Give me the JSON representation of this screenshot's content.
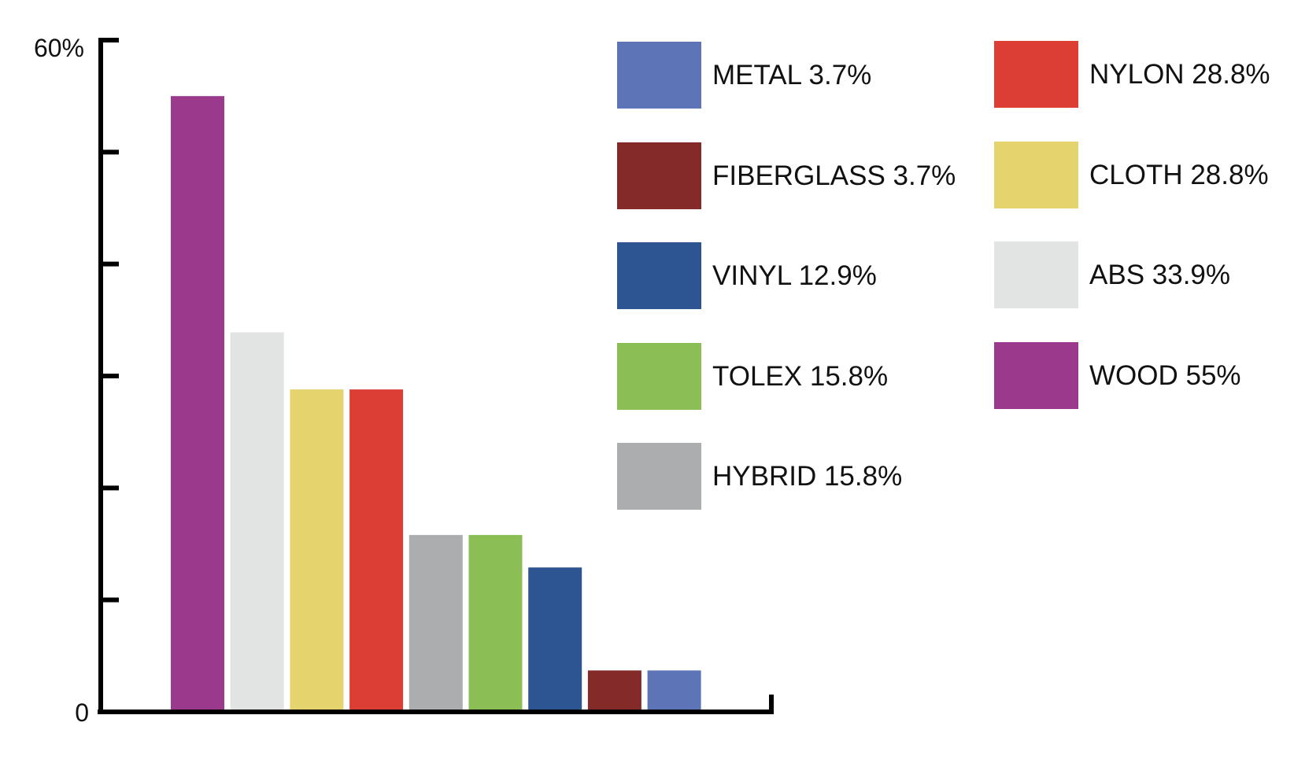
{
  "chart_data": {
    "type": "bar",
    "title": "",
    "xlabel": "",
    "ylabel": "",
    "ylim": [
      0,
      60
    ],
    "y_tick_labels": {
      "top": "60%",
      "bottom": "0"
    },
    "categories": [
      "WOOD",
      "ABS",
      "CLOTH",
      "NYLON",
      "HYBRID",
      "TOLEX",
      "VINYL",
      "FIBERGLASS",
      "METAL"
    ],
    "values": [
      55,
      33.9,
      28.8,
      28.8,
      15.8,
      15.8,
      12.9,
      3.7,
      3.7
    ],
    "colors": [
      "#9b3a8c",
      "#e2e3e3",
      "#e5d36e",
      "#dc3e33",
      "#acadae",
      "#8bbe54",
      "#2c5591",
      "#842b2a",
      "#5d74b6"
    ],
    "grid": false,
    "legend": {
      "placement": "top-right",
      "columns": [
        [
          {
            "label": "METAL 3.7%",
            "color": "#5d74b6"
          },
          {
            "label": "FIBERGLASS 3.7%",
            "color": "#842b2a"
          },
          {
            "label": "VINYL 12.9%",
            "color": "#2c5591"
          },
          {
            "label": "TOLEX 15.8%",
            "color": "#8bbe54"
          },
          {
            "label": "HYBRID 15.8%",
            "color": "#acadae"
          }
        ],
        [
          {
            "label": "NYLON 28.8%",
            "color": "#dc3e33"
          },
          {
            "label": "CLOTH 28.8%",
            "color": "#e5d36e"
          },
          {
            "label": "ABS 33.9%",
            "color": "#e2e3e3"
          },
          {
            "label": "WOOD 55%",
            "color": "#9b3a8c"
          }
        ]
      ]
    }
  }
}
